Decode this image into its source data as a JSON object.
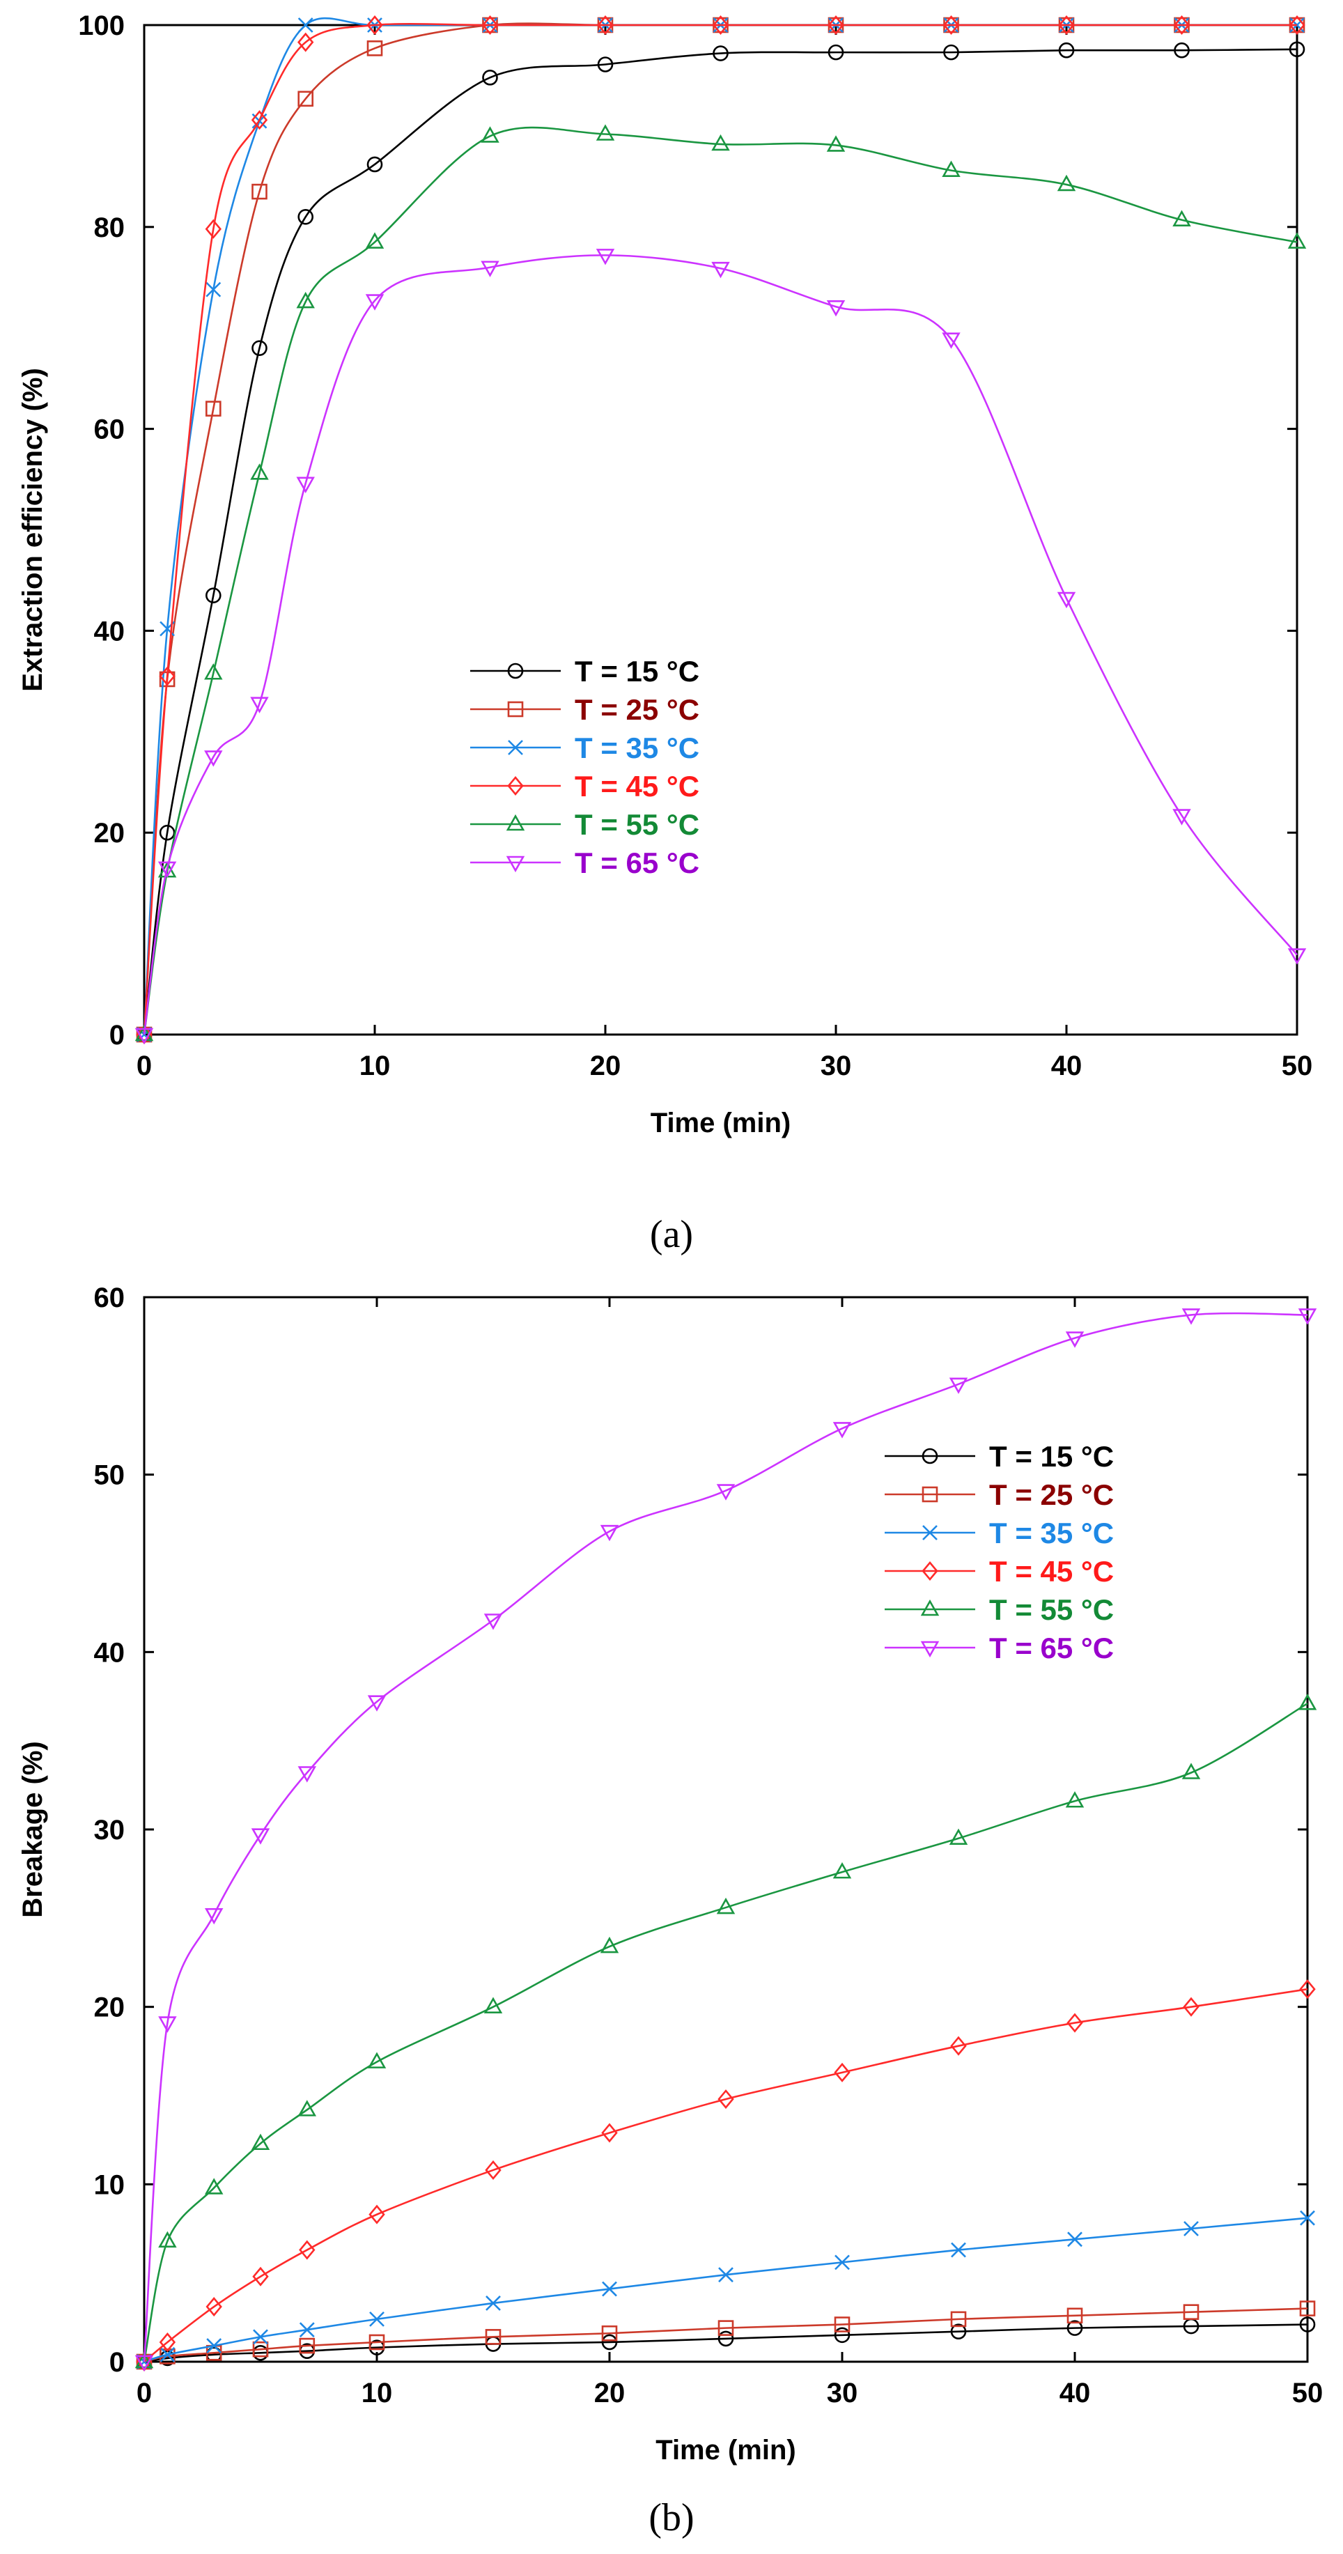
{
  "chart_data": [
    {
      "type": "line",
      "panel_label": "(a)",
      "xlabel": "Time (min)",
      "ylabel": "Extraction efficiency (%)",
      "xlim": [
        0,
        50
      ],
      "ylim": [
        0,
        100
      ],
      "xticks": [
        0,
        10,
        20,
        30,
        40,
        50
      ],
      "yticks": [
        0,
        20,
        40,
        60,
        80,
        100
      ],
      "legend_position": "center",
      "series": [
        {
          "name": "T = 15 °C",
          "marker": "circle",
          "color": "#000000",
          "text_color": "#000000",
          "x": [
            0,
            1,
            3,
            5,
            7,
            10,
            15,
            20,
            25,
            30,
            35,
            40,
            45,
            50
          ],
          "values": [
            0,
            20,
            43.5,
            68,
            81,
            86.2,
            94.8,
            96.1,
            97.2,
            97.3,
            97.3,
            97.5,
            97.5,
            97.6
          ]
        },
        {
          "name": "T = 25 °C",
          "marker": "square",
          "color": "#cc3a2a",
          "text_color": "#8b0000",
          "x": [
            0,
            1,
            3,
            5,
            7,
            10,
            15,
            20,
            25,
            30,
            35,
            40,
            45,
            50
          ],
          "values": [
            0,
            35.2,
            62,
            83.5,
            92.7,
            97.7,
            100,
            100,
            100,
            100,
            100,
            100,
            100,
            100
          ]
        },
        {
          "name": "T = 35 °C",
          "marker": "x",
          "color": "#1e88e5",
          "text_color": "#1e88e5",
          "x": [
            0,
            1,
            3,
            5,
            7,
            10,
            15,
            20,
            25,
            30,
            35,
            40,
            45,
            50
          ],
          "values": [
            0,
            40.2,
            73.8,
            90.5,
            100,
            100,
            100,
            100,
            100,
            100,
            100,
            100,
            100,
            100
          ]
        },
        {
          "name": "T = 45 °C",
          "marker": "diamond",
          "color": "#ff2a2a",
          "text_color": "#ff1a1a",
          "x": [
            0,
            1,
            3,
            5,
            7,
            10,
            15,
            20,
            25,
            30,
            35,
            40,
            45,
            50
          ],
          "values": [
            0,
            35.5,
            79.8,
            90.6,
            98.3,
            100,
            100,
            100,
            100,
            100,
            100,
            100,
            100,
            100
          ]
        },
        {
          "name": "T = 55 °C",
          "marker": "triangle-up",
          "color": "#1a9641",
          "text_color": "#138a36",
          "x": [
            0,
            1,
            3,
            5,
            7,
            10,
            15,
            20,
            25,
            30,
            35,
            40,
            45,
            50
          ],
          "values": [
            0,
            16.2,
            35.8,
            55.6,
            72.6,
            78.5,
            89,
            89.2,
            88.2,
            88.1,
            85.6,
            84.2,
            80.7,
            78.5
          ]
        },
        {
          "name": "T = 65 °C",
          "marker": "triangle-down",
          "color": "#cc33ff",
          "text_color": "#9900cc",
          "x": [
            0,
            1,
            3,
            5,
            7,
            10,
            15,
            20,
            25,
            30,
            35,
            40,
            45,
            50
          ],
          "values": [
            0,
            16.5,
            27.5,
            32.8,
            54.6,
            72.7,
            76,
            77.2,
            75.9,
            72.1,
            68.9,
            43.2,
            21.7,
            7.9
          ]
        }
      ]
    },
    {
      "type": "line",
      "panel_label": "(b)",
      "xlabel": "Time (min)",
      "ylabel": "Breakage (%)",
      "xlim": [
        0,
        50
      ],
      "ylim": [
        0,
        60
      ],
      "xticks": [
        0,
        10,
        20,
        30,
        40,
        50
      ],
      "yticks": [
        0,
        10,
        20,
        30,
        40,
        50,
        60
      ],
      "legend_position": "top-right",
      "series": [
        {
          "name": "T = 15 °C",
          "marker": "circle",
          "color": "#000000",
          "text_color": "#000000",
          "x": [
            0,
            1,
            3,
            5,
            7,
            10,
            15,
            20,
            25,
            30,
            35,
            40,
            45,
            50
          ],
          "values": [
            0,
            0.2,
            0.4,
            0.5,
            0.6,
            0.8,
            1.0,
            1.1,
            1.3,
            1.5,
            1.7,
            1.9,
            2.0,
            2.1
          ]
        },
        {
          "name": "T = 25 °C",
          "marker": "square",
          "color": "#cc3a2a",
          "text_color": "#8b0000",
          "x": [
            0,
            1,
            3,
            5,
            7,
            10,
            15,
            20,
            25,
            30,
            35,
            40,
            45,
            50
          ],
          "values": [
            0,
            0.3,
            0.5,
            0.7,
            0.9,
            1.1,
            1.4,
            1.6,
            1.9,
            2.1,
            2.4,
            2.6,
            2.8,
            3.0
          ]
        },
        {
          "name": "T = 35 °C",
          "marker": "x",
          "color": "#1e88e5",
          "text_color": "#1e88e5",
          "x": [
            0,
            1,
            3,
            5,
            7,
            10,
            15,
            20,
            25,
            30,
            35,
            40,
            45,
            50
          ],
          "values": [
            0,
            0.4,
            0.9,
            1.4,
            1.8,
            2.4,
            3.3,
            4.1,
            4.9,
            5.6,
            6.3,
            6.9,
            7.5,
            8.1
          ]
        },
        {
          "name": "T = 45 °C",
          "marker": "diamond",
          "color": "#ff2a2a",
          "text_color": "#ff1a1a",
          "x": [
            0,
            1,
            3,
            5,
            7,
            10,
            15,
            20,
            25,
            30,
            35,
            40,
            45,
            50
          ],
          "values": [
            0,
            1.1,
            3.1,
            4.8,
            6.3,
            8.3,
            10.8,
            12.9,
            14.8,
            16.3,
            17.8,
            19.1,
            20.0,
            21.0
          ]
        },
        {
          "name": "T = 55 °C",
          "marker": "triangle-up",
          "color": "#1a9641",
          "text_color": "#138a36",
          "x": [
            0,
            1,
            3,
            5,
            7,
            10,
            15,
            20,
            25,
            30,
            35,
            40,
            45,
            50
          ],
          "values": [
            0,
            6.8,
            9.8,
            12.3,
            14.2,
            16.9,
            20.0,
            23.4,
            25.6,
            27.6,
            29.5,
            31.6,
            33.2,
            37.1
          ]
        },
        {
          "name": "T = 65 °C",
          "marker": "triangle-down",
          "color": "#cc33ff",
          "text_color": "#9900cc",
          "x": [
            0,
            1,
            3,
            5,
            7,
            10,
            15,
            20,
            25,
            30,
            35,
            40,
            45,
            50
          ],
          "values": [
            0,
            19.1,
            25.2,
            29.7,
            33.2,
            37.2,
            41.8,
            46.8,
            49.1,
            52.6,
            55.1,
            57.7,
            59.0,
            59.0
          ]
        }
      ]
    }
  ]
}
